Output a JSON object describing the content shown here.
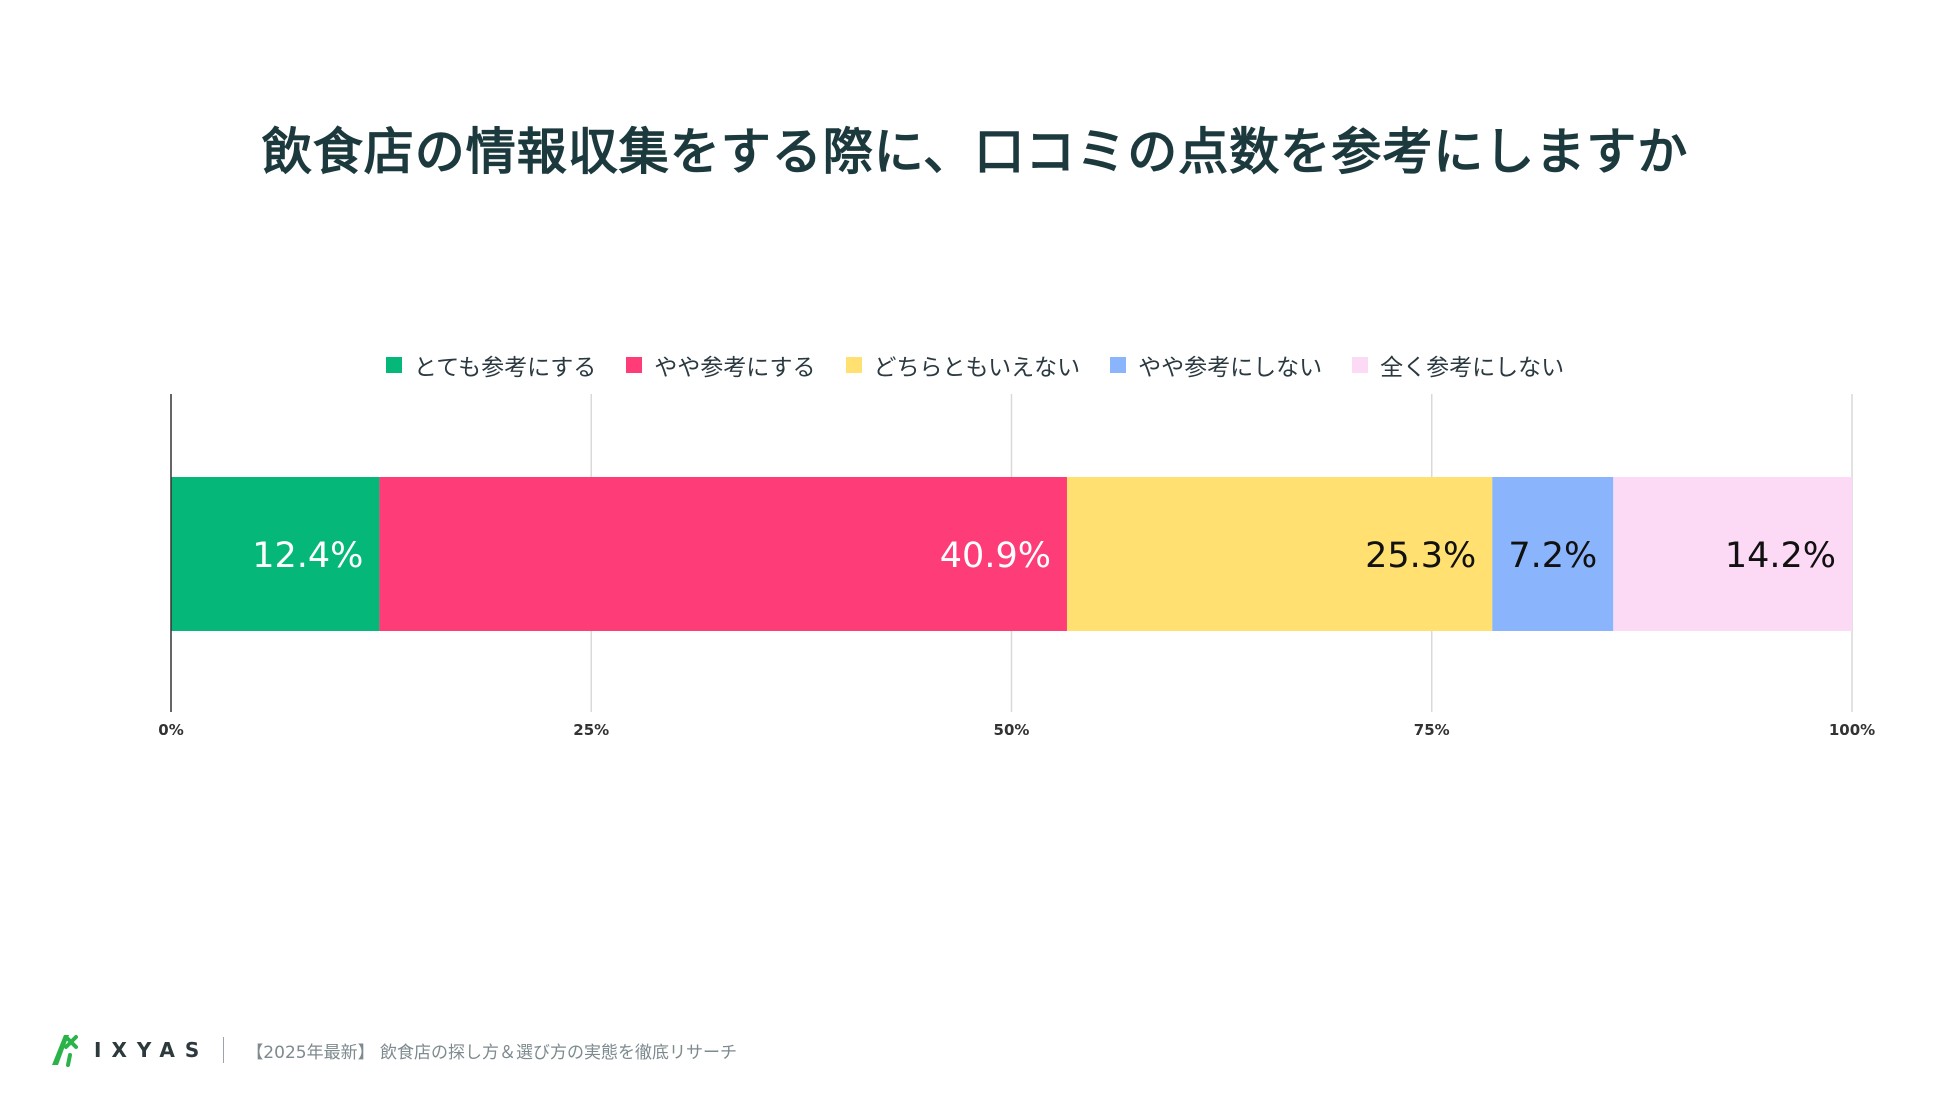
{
  "title": "飲食店の情報収集をする際に、口コミの点数を参考にしますか",
  "legend": [
    {
      "label": "とても参考にする",
      "color": "#05b778"
    },
    {
      "label": "やや参考にする",
      "color": "#fd3c78"
    },
    {
      "label": "どちらともいえない",
      "color": "#ffe070"
    },
    {
      "label": "やや参考にしない",
      "color": "#8ab4fc"
    },
    {
      "label": "全く参考にしない",
      "color": "#fcdaf6"
    }
  ],
  "chart_data": {
    "type": "bar",
    "orientation": "horizontal",
    "stacked": true,
    "categories": [
      ""
    ],
    "series": [
      {
        "name": "とても参考にする",
        "values": [
          12.4
        ],
        "label": "12.4%",
        "color": "#05b778",
        "label_color": "#ffffff"
      },
      {
        "name": "やや参考にする",
        "values": [
          40.9
        ],
        "label": "40.9%",
        "color": "#fd3c78",
        "label_color": "#ffffff"
      },
      {
        "name": "どちらともいえない",
        "values": [
          25.3
        ],
        "label": "25.3%",
        "color": "#ffe070",
        "label_color": "#111111"
      },
      {
        "name": "やや参考にしない",
        "values": [
          7.2
        ],
        "label": "7.2%",
        "color": "#8ab4fc",
        "label_color": "#111111"
      },
      {
        "name": "全く参考にしない",
        "values": [
          14.2
        ],
        "label": "14.2%",
        "color": "#fcdaf6",
        "label_color": "#111111"
      }
    ],
    "xlim": [
      0,
      100
    ],
    "xticks": [
      0,
      25,
      50,
      75,
      100
    ],
    "xtick_labels": [
      "0%",
      "25%",
      "50%",
      "75%",
      "100%"
    ],
    "grid": true,
    "legend_position": "top"
  },
  "footer": {
    "brand": "IXYAS",
    "note": "【2025年最新】 飲食店の探し方＆選び方の実態を徹底リサーチ"
  }
}
